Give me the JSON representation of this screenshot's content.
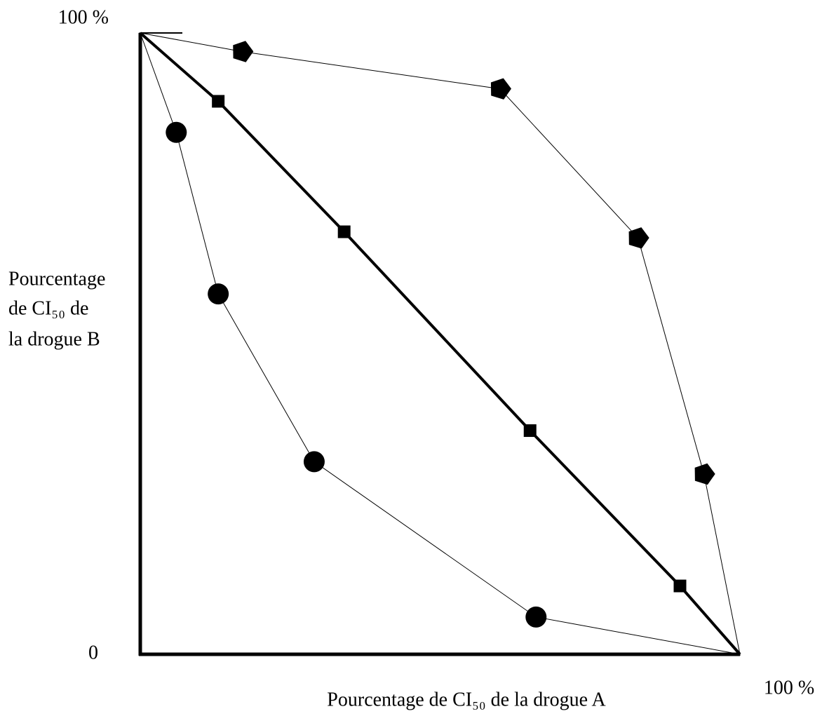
{
  "chart_data": {
    "type": "line",
    "xlabel": "Pourcentage de CI₅₀ de la drogue A",
    "ylabel": [
      "Pourcentage",
      "de CI₅₀ de",
      "la drogue B"
    ],
    "xlim": [
      0,
      100
    ],
    "ylim": [
      0,
      100
    ],
    "xticks": [
      {
        "value": 100,
        "label": "100 %"
      }
    ],
    "yticks": [
      0,
      {
        "value": 100,
        "label": "100 %"
      }
    ],
    "grid": false,
    "series": [
      {
        "color": "#000000",
        "marker": "pentagon",
        "line_width": 1,
        "x": [
          0,
          17,
          60,
          83,
          94,
          100
        ],
        "values": [
          100,
          97,
          91,
          67,
          29,
          0
        ]
      },
      {
        "color": "#000000",
        "marker": "square",
        "line_width": 4,
        "x": [
          0,
          13,
          34,
          65,
          90,
          100
        ],
        "values": [
          100,
          89,
          68,
          36,
          11,
          0
        ]
      },
      {
        "color": "#000000",
        "marker": "circle",
        "line_width": 1,
        "x": [
          0,
          6,
          13,
          29,
          66,
          100
        ],
        "values": [
          100,
          84,
          58,
          31,
          6,
          0
        ]
      }
    ]
  }
}
